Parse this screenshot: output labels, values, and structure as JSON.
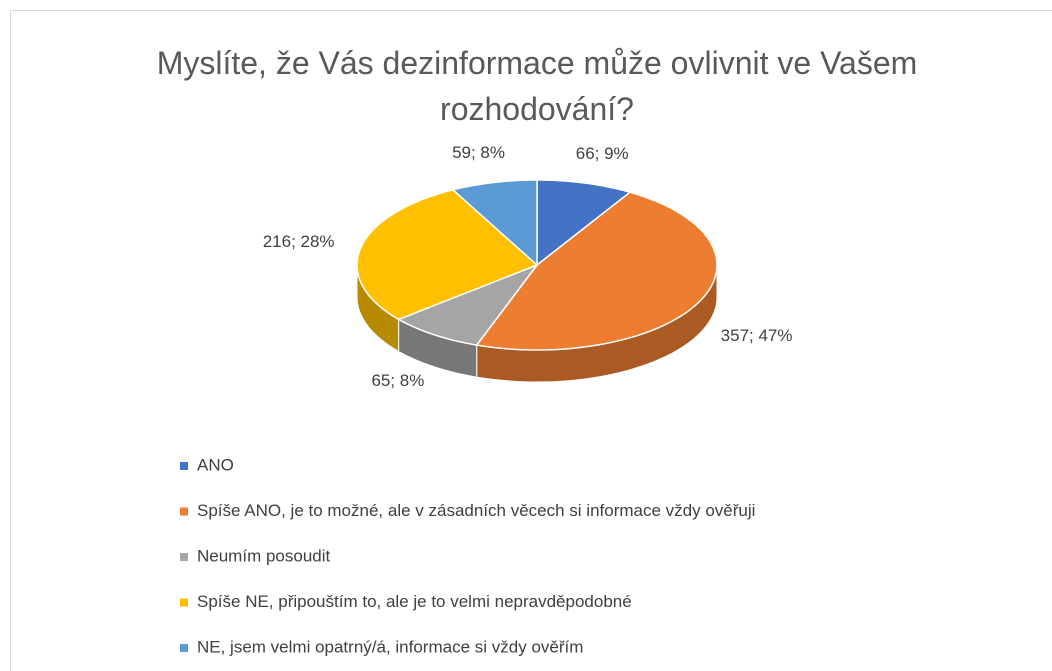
{
  "chart_data": {
    "type": "pie",
    "title": "Myslíte, že Vás dezinformace může ovlivnit ve Vašem rozhodování?",
    "categories": [
      "ANO",
      "Spíše ANO, je to možné, ale v zásadních věcech si informace vždy ověřuji",
      "Neumím posoudit",
      "Spíše NE, připouštím to, ale je to velmi nepravděpodobné",
      "NE, jsem velmi opatrný/á, informace si vždy ověřím"
    ],
    "values": [
      66,
      357,
      65,
      216,
      59
    ],
    "value_labels": [
      "66; 9%",
      "357; 47%",
      "65; 8%",
      "216; 28%",
      "59; 8%"
    ],
    "colors": [
      "#4472c4",
      "#ed7d31",
      "#a5a5a5",
      "#ffc000",
      "#5b9bd5"
    ],
    "legend": "bottom"
  }
}
